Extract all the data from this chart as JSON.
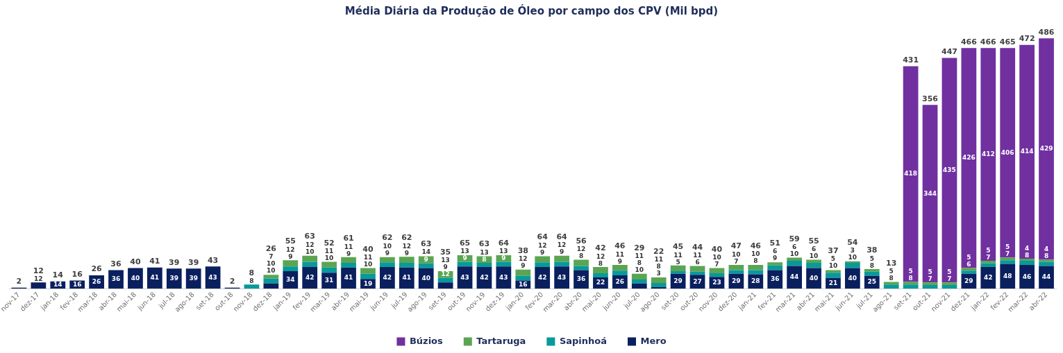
{
  "chart_data": {
    "type": "bar",
    "title": "Média Diária da Produção de Óleo por campo dos CPV (Mil bpd)",
    "stacked": true,
    "legend": "bottom",
    "tick_labels": "x",
    "categories": [
      "nov-17",
      "dez-17",
      "jan-18",
      "fev-18",
      "mar-18",
      "abr-18",
      "mai-18",
      "jun-18",
      "jul-18",
      "ago-18",
      "set-18",
      "out-18",
      "nov-18",
      "dez-18",
      "jan-19",
      "fev-19",
      "mar-19",
      "abr-19",
      "mai-19",
      "jun-19",
      "jul-19",
      "ago-19",
      "set-19",
      "out-19",
      "nov-19",
      "dez-19",
      "jan-20",
      "fev-20",
      "mar-20",
      "abr-20",
      "mai-20",
      "jun-20",
      "jul-20",
      "ago-20",
      "set-20",
      "out-20",
      "nov-20",
      "dez-20",
      "jan-21",
      "fev-21",
      "mar-21",
      "abr-21",
      "mai-21",
      "jun-21",
      "jul-21",
      "ago-21",
      "set-21",
      "out-21",
      "nov-21",
      "dez-21",
      "jan-22",
      "fev-22",
      "mar-22",
      "abr-22"
    ],
    "series": [
      {
        "name": "Mero",
        "color": "#0a1f5e",
        "values": [
          2,
          12,
          14,
          16,
          26,
          36,
          40,
          41,
          39,
          39,
          43,
          2,
          null,
          10,
          34,
          42,
          31,
          41,
          19,
          42,
          41,
          40,
          12,
          43,
          42,
          43,
          16,
          42,
          43,
          36,
          22,
          26,
          10,
          3,
          29,
          27,
          23,
          29,
          28,
          36,
          44,
          40,
          21,
          40,
          25,
          null,
          null,
          null,
          null,
          29,
          42,
          48,
          46,
          44
        ],
        "value_labels": [
          null,
          "12",
          "14",
          "16",
          "26",
          "36",
          "40",
          "41",
          "39",
          "39",
          "43",
          null,
          null,
          "10",
          "34",
          "42",
          "31",
          "41",
          "19",
          "42",
          "41",
          "40",
          "12",
          "43",
          "42",
          "43",
          "16",
          "42",
          "43",
          "36",
          "22",
          "26",
          "10",
          "3",
          "29",
          "27",
          "23",
          "29",
          "28",
          "36",
          "44",
          "40",
          "21",
          "40",
          "25",
          null,
          null,
          null,
          null,
          "29",
          "42",
          "48",
          "46",
          "44"
        ]
      },
      {
        "name": "Sapinhoá",
        "color": "#08999b",
        "values": [
          null,
          null,
          null,
          null,
          null,
          null,
          null,
          null,
          null,
          null,
          null,
          null,
          8,
          10,
          9,
          10,
          10,
          9,
          10,
          9,
          9,
          9,
          9,
          9,
          8,
          9,
          9,
          9,
          9,
          8,
          8,
          9,
          8,
          8,
          5,
          6,
          7,
          7,
          8,
          9,
          10,
          10,
          10,
          10,
          8,
          8,
          8,
          7,
          7,
          6,
          7,
          7,
          8,
          8
        ],
        "value_labels": [
          null,
          null,
          null,
          null,
          null,
          null,
          null,
          null,
          null,
          null,
          null,
          null,
          "8",
          "10",
          "9",
          "10",
          "10",
          "9",
          "10",
          "9",
          "9",
          "9",
          "9",
          "9",
          "8",
          "9",
          "9",
          "9",
          "9",
          "8",
          "8",
          "9",
          "8",
          "8",
          "5",
          "6",
          "7",
          "7",
          "8",
          "9",
          "10",
          "10",
          "10",
          "10",
          "8",
          "8",
          "8",
          "7",
          "7",
          "6",
          "7",
          "7",
          "8",
          "8"
        ]
      },
      {
        "name": "Tartaruga",
        "color": "#5ba552",
        "values": [
          null,
          null,
          null,
          null,
          null,
          null,
          null,
          null,
          null,
          null,
          null,
          null,
          null,
          7,
          12,
          12,
          11,
          11,
          11,
          10,
          12,
          14,
          13,
          13,
          13,
          13,
          12,
          12,
          12,
          12,
          12,
          11,
          11,
          11,
          11,
          11,
          10,
          10,
          10,
          6,
          6,
          6,
          5,
          3,
          5,
          5,
          5,
          5,
          5,
          5,
          5,
          5,
          4,
          4
        ],
        "value_labels": [
          null,
          null,
          null,
          null,
          null,
          null,
          null,
          null,
          null,
          null,
          null,
          null,
          null,
          "7",
          "12",
          "12",
          "11",
          "11",
          "11",
          "10",
          "12",
          "14",
          "13",
          "13",
          "13",
          "13",
          "12",
          "12",
          "12",
          "12",
          "12",
          "11",
          "11",
          "11",
          "11",
          "11",
          "10",
          "10",
          "10",
          "6",
          "6",
          "6",
          "5",
          "3",
          "5",
          "5",
          "5",
          "5",
          "5",
          "5",
          "5",
          "5",
          "4",
          "4"
        ]
      },
      {
        "name": "Búzios",
        "color": "#7030a0",
        "values": [
          null,
          null,
          null,
          null,
          null,
          null,
          null,
          null,
          null,
          null,
          null,
          null,
          null,
          null,
          null,
          null,
          null,
          null,
          null,
          null,
          null,
          null,
          null,
          null,
          null,
          null,
          null,
          null,
          null,
          null,
          null,
          null,
          null,
          null,
          null,
          null,
          null,
          null,
          null,
          null,
          null,
          null,
          null,
          null,
          null,
          null,
          418,
          344,
          435,
          426,
          412,
          406,
          414,
          429
        ],
        "value_labels": [
          null,
          null,
          null,
          null,
          null,
          null,
          null,
          null,
          null,
          null,
          null,
          null,
          null,
          null,
          null,
          null,
          null,
          null,
          null,
          null,
          null,
          null,
          null,
          null,
          null,
          null,
          null,
          null,
          null,
          null,
          null,
          null,
          null,
          null,
          null,
          null,
          null,
          null,
          null,
          null,
          null,
          null,
          null,
          null,
          null,
          null,
          "418",
          "344",
          "435",
          "426",
          "412",
          "406",
          "414",
          "429"
        ]
      }
    ],
    "totals": [
      "2",
      "12",
      "14",
      "16",
      "26",
      "36",
      "40",
      "41",
      "39",
      "39",
      "43",
      "2",
      "8",
      "26",
      "55",
      "63",
      "52",
      "61",
      "40",
      "62",
      "62",
      "63",
      "35",
      "65",
      "63",
      "64",
      "38",
      "64",
      "64",
      "56",
      "42",
      "46",
      "29",
      "22",
      "45",
      "44",
      "40",
      "47",
      "46",
      "51",
      "59",
      "55",
      "37",
      "54",
      "38",
      "13",
      "431",
      "356",
      "447",
      "466",
      "466",
      "465",
      "472",
      "486"
    ]
  }
}
